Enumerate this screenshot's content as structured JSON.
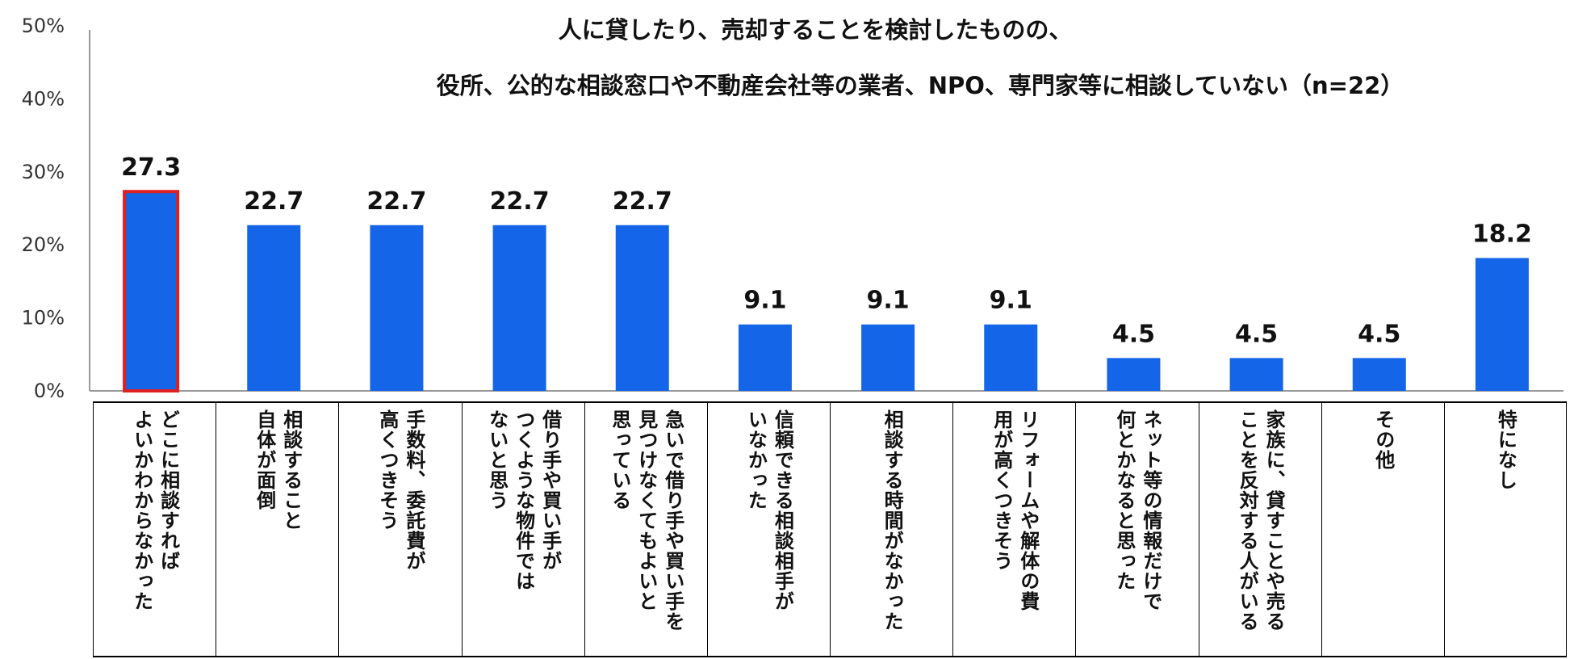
{
  "chart_data": {
    "type": "bar",
    "title_line1": "人に貸したり、売却することを検討したものの、",
    "title_line2": "役所、公的な相談窓口や不動産会社等の業者、NPO、専門家等に相談していない（n=22）",
    "categories": [
      "どこに相談すれば\nよいかわからなかった",
      "相談すること\n自体が面倒",
      "手数料、委託費が\n高くつきそう",
      "借り手や買い手が\nつくような物件では\nないと思う",
      "急いで借り手や買い手を\n見つけなくてもよいと\n思っている",
      "信頼できる相談相手が\nいなかった",
      "相談する時間がなかった",
      "リフォームや解体の費\n用が高くつきそう",
      "ネット等の情報だけで\n何とかなると思った",
      "家族に、貸すことや売る\nことを反対する人がいる",
      "その他",
      "特になし"
    ],
    "values": [
      27.3,
      22.7,
      22.7,
      22.7,
      22.7,
      9.1,
      9.1,
      9.1,
      4.5,
      4.5,
      4.5,
      18.2
    ],
    "value_labels": [
      "27.3",
      "22.7",
      "22.7",
      "22.7",
      "22.7",
      "9.1",
      "9.1",
      "9.1",
      "4.5",
      "4.5",
      "4.5",
      "18.2"
    ],
    "yticks": [
      "0%",
      "10%",
      "20%",
      "30%",
      "40%",
      "50%"
    ],
    "ylim": [
      0,
      50
    ],
    "grid": false,
    "highlighted_index": 0,
    "colors": {
      "bar": "#1565e8",
      "highlight_border": "#e02020",
      "axis": "#999999"
    }
  }
}
